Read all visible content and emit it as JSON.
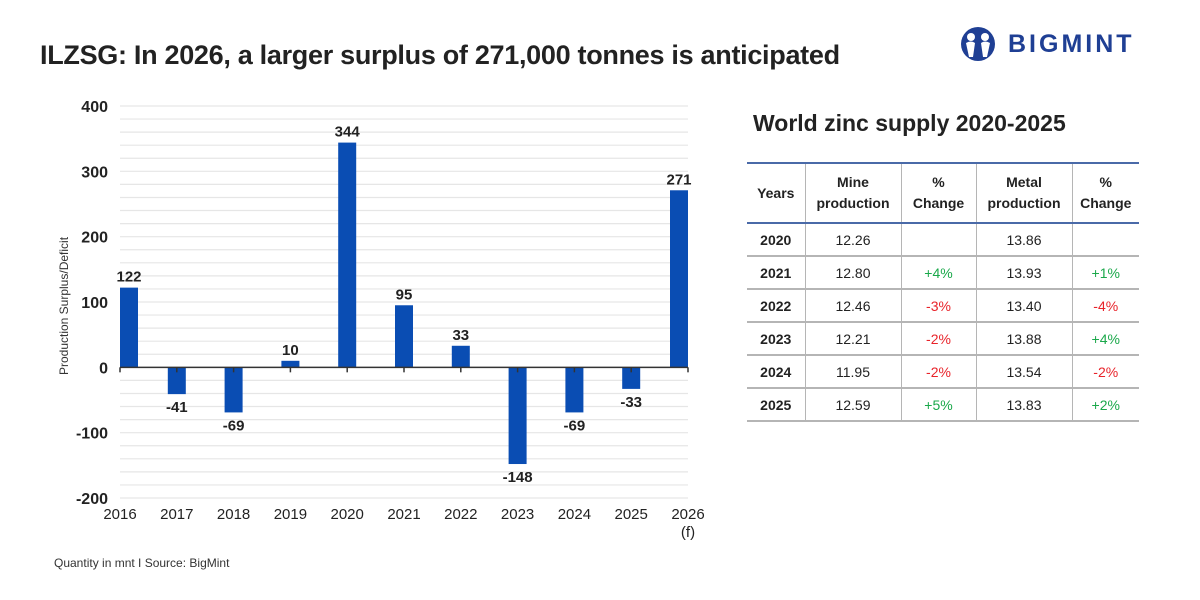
{
  "header": {
    "title": "ILZSG: In 2026, a larger surplus of 271,000 tonnes is anticipated",
    "logo_text": "BIGMINT",
    "brand_color": "#1f3f94"
  },
  "footer": {
    "source": "Quantity in mnt  I  Source: BigMint"
  },
  "chart_data": {
    "type": "bar",
    "title": "",
    "xlabel": "",
    "ylabel": "Production Surplus/Deficit",
    "categories": [
      "2016",
      "2017",
      "2018",
      "2019",
      "2020",
      "2021",
      "2022",
      "2023",
      "2024",
      "2025",
      "2026\n(f)"
    ],
    "values": [
      122,
      -41,
      -69,
      10,
      344,
      95,
      33,
      -148,
      -69,
      -33,
      271
    ],
    "ylim": [
      -200,
      400
    ],
    "yticks": [
      -200,
      -100,
      0,
      100,
      200,
      300,
      400
    ],
    "grid": true,
    "bar_color": "#0a4db3",
    "legend": "none"
  },
  "table": {
    "title": "World zinc supply 2020-2025",
    "headers": [
      "Years",
      "Mine production",
      "% Change",
      "Metal production",
      "% Change"
    ],
    "rows": [
      {
        "year": "2020",
        "mine": "12.26",
        "mine_change": "",
        "metal": "13.86",
        "metal_change": ""
      },
      {
        "year": "2021",
        "mine": "12.80",
        "mine_change": "+4%",
        "metal": "13.93",
        "metal_change": "+1%"
      },
      {
        "year": "2022",
        "mine": "12.46",
        "mine_change": "-3%",
        "metal": "13.40",
        "metal_change": "-4%"
      },
      {
        "year": "2023",
        "mine": "12.21",
        "mine_change": "-2%",
        "metal": "13.88",
        "metal_change": "+4%"
      },
      {
        "year": "2024",
        "mine": "11.95",
        "mine_change": "-2%",
        "metal": "13.54",
        "metal_change": "-2%"
      },
      {
        "year": "2025",
        "mine": "12.59",
        "mine_change": "+5%",
        "metal": "13.83",
        "metal_change": "+2%"
      }
    ],
    "positive_color": "#1aa84a",
    "negative_color": "#e8232a"
  }
}
